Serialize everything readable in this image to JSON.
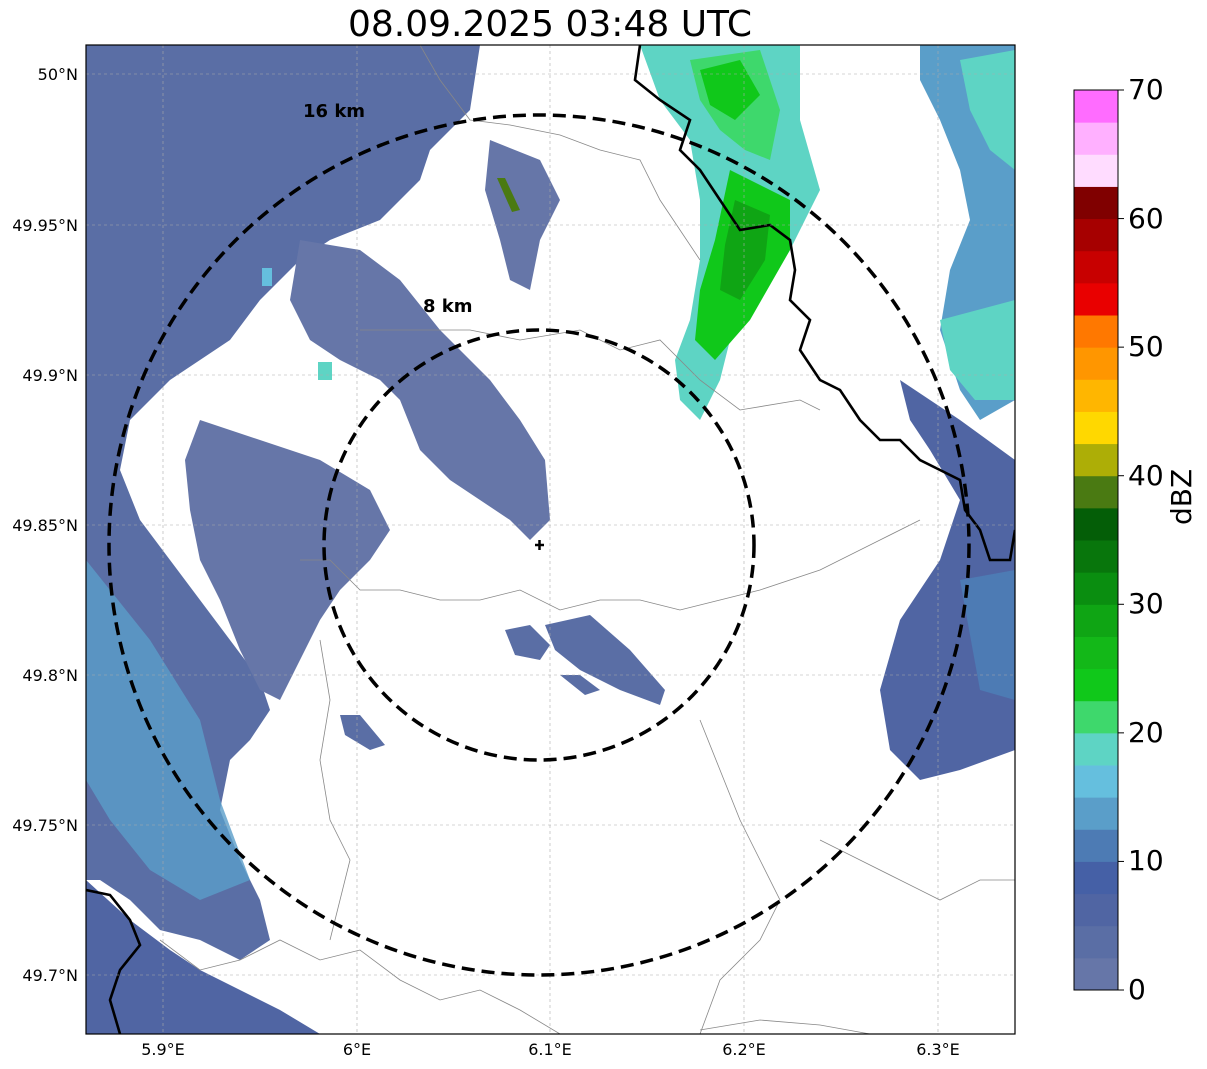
{
  "title": "08.09.2025 03:48 UTC",
  "map": {
    "lat_labels": [
      "50°N",
      "49.95°N",
      "49.9°N",
      "49.85°N",
      "49.8°N",
      "49.75°N",
      "49.7°N"
    ],
    "lon_labels": [
      "5.9°E",
      "6°E",
      "6.1°E",
      "6.2°E",
      "6.3°E"
    ],
    "range_rings": [
      {
        "label": "8 km"
      },
      {
        "label": "16 km"
      }
    ],
    "radar_site": "radar-site-marker"
  },
  "colorbar": {
    "unit": "dBZ",
    "tick_labels": [
      "0",
      "10",
      "20",
      "30",
      "40",
      "50",
      "60",
      "70"
    ],
    "min": 0,
    "max": 70,
    "step": 2.5,
    "colors": [
      "#6676a8",
      "#5a6ea5",
      "#5065a3",
      "#4560a6",
      "#4d7bb4",
      "#5a9ec9",
      "#65bfde",
      "#5ed4c4",
      "#3ed86c",
      "#10c81a",
      "#13b818",
      "#0fa514",
      "#0a8e10",
      "#08760c",
      "#045e07",
      "#4a7a12",
      "#adae06",
      "#ffd800",
      "#ffb600",
      "#ff9600",
      "#ff7800",
      "#e90000",
      "#c80000",
      "#a60000",
      "#800000",
      "#ffdcff",
      "#ffb0ff",
      "#ff6cff",
      "#f032f0"
    ]
  }
}
